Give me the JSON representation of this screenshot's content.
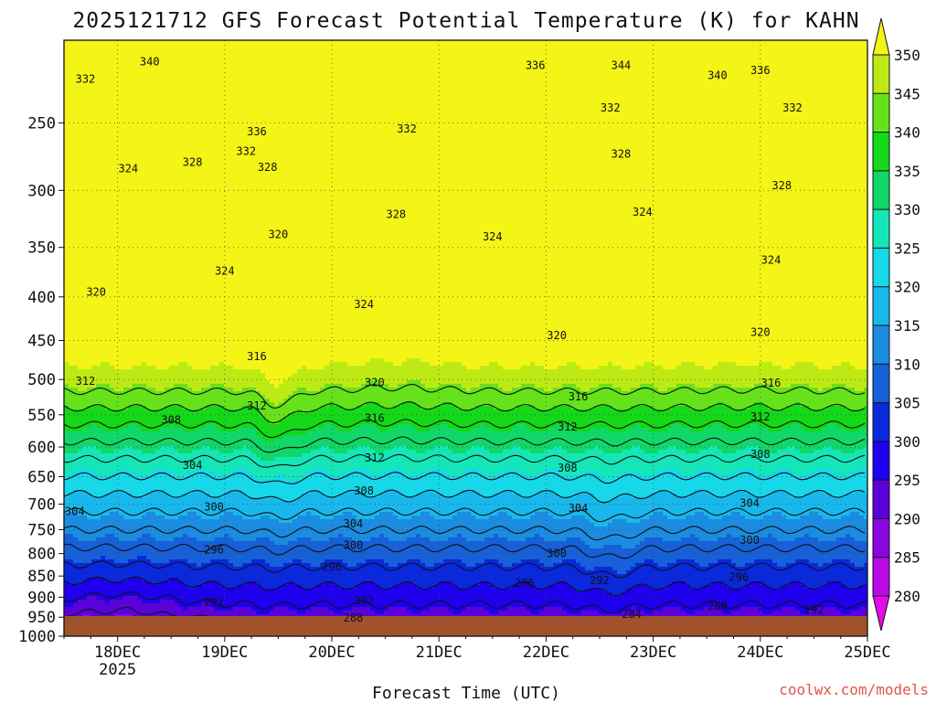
{
  "chart_data": {
    "type": "heatmap",
    "title": "2025121712 GFS Forecast Potential Temperature (K) for KAHN",
    "xlabel": "Forecast Time (UTC)",
    "ylabel": "",
    "credit": "coolwx.com/models",
    "x_ticks": [
      "18DEC",
      "19DEC",
      "20DEC",
      "21DEC",
      "22DEC",
      "23DEC",
      "24DEC",
      "25DEC"
    ],
    "x_year_label": "2025",
    "y_ticks": [
      250,
      300,
      350,
      400,
      450,
      500,
      550,
      600,
      650,
      700,
      750,
      800,
      850,
      900,
      950,
      1000
    ],
    "ylim_hpa": [
      1000,
      200
    ],
    "xlim_days": [
      17.5,
      25.0
    ],
    "y_scale": "log-pressure",
    "grid": true,
    "colorbar": {
      "levels": [
        280,
        285,
        290,
        295,
        300,
        305,
        310,
        315,
        320,
        325,
        330,
        335,
        340,
        345,
        350
      ],
      "labels": [
        "350",
        "345",
        "340",
        "335",
        "330",
        "325",
        "320",
        "315",
        "310",
        "305",
        "300",
        "295",
        "290",
        "285",
        "280"
      ],
      "colors": [
        "#e40bea",
        "#b70ae6",
        "#8a05e0",
        "#5a02d8",
        "#1e00ee",
        "#0a28dc",
        "#1660d8",
        "#1b8ce0",
        "#18b8ec",
        "#16d8e8",
        "#14e6b8",
        "#10d868",
        "#14d818",
        "#66e21a",
        "#bdea14",
        "#f4f416"
      ]
    },
    "contour_interval_K": 4,
    "contour_levels": [
      284,
      288,
      292,
      296,
      300,
      304,
      308,
      312,
      316,
      320,
      324,
      328,
      332,
      336,
      340,
      344
    ],
    "contour_labels": [
      {
        "text": "340",
        "day": 18.3,
        "hpa": 212
      },
      {
        "text": "332",
        "day": 17.7,
        "hpa": 222
      },
      {
        "text": "336",
        "day": 19.3,
        "hpa": 256
      },
      {
        "text": "336",
        "day": 21.9,
        "hpa": 214
      },
      {
        "text": "344",
        "day": 22.7,
        "hpa": 214
      },
      {
        "text": "340",
        "day": 23.6,
        "hpa": 220
      },
      {
        "text": "336",
        "day": 24.0,
        "hpa": 217
      },
      {
        "text": "332",
        "day": 22.6,
        "hpa": 240
      },
      {
        "text": "332",
        "day": 24.3,
        "hpa": 240
      },
      {
        "text": "332",
        "day": 19.2,
        "hpa": 270
      },
      {
        "text": "332",
        "day": 20.7,
        "hpa": 254
      },
      {
        "text": "328",
        "day": 18.7,
        "hpa": 278
      },
      {
        "text": "328",
        "day": 19.4,
        "hpa": 282
      },
      {
        "text": "328",
        "day": 22.7,
        "hpa": 272
      },
      {
        "text": "328",
        "day": 24.2,
        "hpa": 296
      },
      {
        "text": "328",
        "day": 20.6,
        "hpa": 320
      },
      {
        "text": "324",
        "day": 18.1,
        "hpa": 283
      },
      {
        "text": "324",
        "day": 21.5,
        "hpa": 340
      },
      {
        "text": "324",
        "day": 22.9,
        "hpa": 318
      },
      {
        "text": "324",
        "day": 24.1,
        "hpa": 362
      },
      {
        "text": "324",
        "day": 19.0,
        "hpa": 373
      },
      {
        "text": "324",
        "day": 20.3,
        "hpa": 408
      },
      {
        "text": "320",
        "day": 17.8,
        "hpa": 395
      },
      {
        "text": "320",
        "day": 19.5,
        "hpa": 338
      },
      {
        "text": "320",
        "day": 22.1,
        "hpa": 444
      },
      {
        "text": "320",
        "day": 24.0,
        "hpa": 440
      },
      {
        "text": "320",
        "day": 20.4,
        "hpa": 504
      },
      {
        "text": "316",
        "day": 19.3,
        "hpa": 470
      },
      {
        "text": "316",
        "day": 20.4,
        "hpa": 555
      },
      {
        "text": "316",
        "day": 22.3,
        "hpa": 524
      },
      {
        "text": "316",
        "day": 24.1,
        "hpa": 505
      },
      {
        "text": "312",
        "day": 17.7,
        "hpa": 502
      },
      {
        "text": "312",
        "day": 19.3,
        "hpa": 537
      },
      {
        "text": "312",
        "day": 20.4,
        "hpa": 618
      },
      {
        "text": "312",
        "day": 22.2,
        "hpa": 568
      },
      {
        "text": "312",
        "day": 24.0,
        "hpa": 553
      },
      {
        "text": "308",
        "day": 18.5,
        "hpa": 558
      },
      {
        "text": "308",
        "day": 20.3,
        "hpa": 675
      },
      {
        "text": "308",
        "day": 22.2,
        "hpa": 635
      },
      {
        "text": "308",
        "day": 24.0,
        "hpa": 612
      },
      {
        "text": "304",
        "day": 18.7,
        "hpa": 630
      },
      {
        "text": "304",
        "day": 17.6,
        "hpa": 714
      },
      {
        "text": "304",
        "day": 20.2,
        "hpa": 738
      },
      {
        "text": "304",
        "day": 22.3,
        "hpa": 708
      },
      {
        "text": "304",
        "day": 23.9,
        "hpa": 698
      },
      {
        "text": "300",
        "day": 18.9,
        "hpa": 705
      },
      {
        "text": "300",
        "day": 20.2,
        "hpa": 782
      },
      {
        "text": "300",
        "day": 22.1,
        "hpa": 800
      },
      {
        "text": "300",
        "day": 23.9,
        "hpa": 772
      },
      {
        "text": "296",
        "day": 18.9,
        "hpa": 792
      },
      {
        "text": "296",
        "day": 20.0,
        "hpa": 830
      },
      {
        "text": "296",
        "day": 21.8,
        "hpa": 867
      },
      {
        "text": "296",
        "day": 23.8,
        "hpa": 853
      },
      {
        "text": "292",
        "day": 18.9,
        "hpa": 912
      },
      {
        "text": "292",
        "day": 20.3,
        "hpa": 908
      },
      {
        "text": "292",
        "day": 22.5,
        "hpa": 860
      },
      {
        "text": "292",
        "day": 24.5,
        "hpa": 932
      },
      {
        "text": "288",
        "day": 20.2,
        "hpa": 952
      },
      {
        "text": "288",
        "day": 23.6,
        "hpa": 922
      },
      {
        "text": "284",
        "day": 22.8,
        "hpa": 942
      }
    ],
    "surface_hpa": 985,
    "colors": {
      "ground": "#a0522d",
      "accent": "#e0554a"
    }
  }
}
